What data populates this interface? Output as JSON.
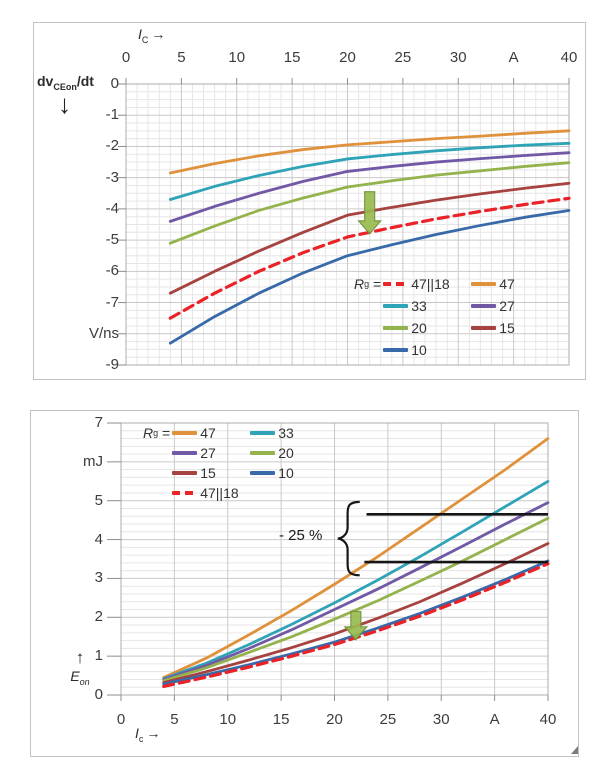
{
  "chart_data": [
    {
      "type": "line",
      "title": "",
      "xlabel": {
        "base": "I",
        "sub": "C",
        "arrow": "→"
      },
      "ylabel": {
        "base": "dv",
        "sub": "CEon",
        "suffix": "/dt",
        "arrow": "↓"
      },
      "xlim": [
        0,
        40
      ],
      "ylim": [
        -9,
        0
      ],
      "x_ticks": {
        "values": [
          0,
          5,
          10,
          15,
          20,
          25,
          30,
          35,
          40
        ],
        "labels": [
          "0",
          "5",
          "10",
          "15",
          "20",
          "25",
          "30",
          "A",
          "40"
        ]
      },
      "y_ticks": {
        "values": [
          0,
          -1,
          -2,
          -3,
          -4,
          -5,
          -6,
          -7,
          -8,
          -9
        ],
        "labels": [
          "0",
          "-1",
          "-2",
          "-3",
          "-4",
          "-5",
          "-6",
          "-7",
          "V/ns",
          "-9"
        ]
      },
      "grid": {
        "x_minor": 1,
        "x_major": 5,
        "y_minor": 0.25,
        "y_major": 1
      },
      "legend": {
        "prefix": {
          "base": "R",
          "sub": "g",
          "eq": "="
        },
        "position": "lower-right",
        "entries": [
          {
            "label": "47||18",
            "color": "#EB2227",
            "dash": true
          },
          {
            "label": "47",
            "color": "#E0913C",
            "dash": false
          },
          {
            "label": "33",
            "color": "#2FA3B7",
            "dash": false
          },
          {
            "label": "27",
            "color": "#7159A6",
            "dash": false
          },
          {
            "label": "20",
            "color": "#95B34D",
            "dash": false
          },
          {
            "label": "15",
            "color": "#A64240",
            "dash": false
          },
          {
            "label": "10",
            "color": "#3869A8",
            "dash": false
          }
        ]
      },
      "x": [
        4,
        8,
        12,
        16,
        20,
        24,
        28,
        32,
        36,
        40
      ],
      "series": [
        {
          "name": "47",
          "color": "#E0913C",
          "dash": false,
          "values": [
            -2.85,
            -2.55,
            -2.3,
            -2.1,
            -1.95,
            -1.85,
            -1.75,
            -1.67,
            -1.58,
            -1.5
          ]
        },
        {
          "name": "33",
          "color": "#2FA3B7",
          "dash": false,
          "values": [
            -3.7,
            -3.28,
            -2.93,
            -2.64,
            -2.4,
            -2.26,
            -2.14,
            -2.04,
            -1.96,
            -1.9
          ]
        },
        {
          "name": "27",
          "color": "#7159A6",
          "dash": false,
          "values": [
            -4.4,
            -3.92,
            -3.5,
            -3.12,
            -2.8,
            -2.64,
            -2.5,
            -2.39,
            -2.29,
            -2.2
          ]
        },
        {
          "name": "20",
          "color": "#95B34D",
          "dash": false,
          "values": [
            -5.1,
            -4.55,
            -4.05,
            -3.65,
            -3.3,
            -3.1,
            -2.92,
            -2.78,
            -2.64,
            -2.52
          ]
        },
        {
          "name": "15",
          "color": "#A64240",
          "dash": false,
          "values": [
            -6.7,
            -6.0,
            -5.35,
            -4.75,
            -4.2,
            -3.95,
            -3.72,
            -3.52,
            -3.34,
            -3.18
          ]
        },
        {
          "name": "10",
          "color": "#3869A8",
          "dash": false,
          "values": [
            -8.3,
            -7.45,
            -6.7,
            -6.05,
            -5.5,
            -5.15,
            -4.82,
            -4.53,
            -4.27,
            -4.05
          ]
        },
        {
          "name": "47||18",
          "color": "#EB2227",
          "dash": true,
          "values": [
            -7.5,
            -6.7,
            -6.0,
            -5.4,
            -4.9,
            -4.6,
            -4.32,
            -4.08,
            -3.86,
            -3.66
          ]
        }
      ],
      "annotations": {
        "block_arrow": {
          "x": 22,
          "from": -3.45,
          "to": -4.8,
          "fill": "#98BB4F",
          "stroke": "#6F8F3A"
        }
      }
    },
    {
      "type": "line",
      "title": "",
      "xlabel": {
        "base": "I",
        "sub": "c",
        "arrow": "→"
      },
      "ylabel": {
        "base": "E",
        "sub": "on",
        "arrow": "↑"
      },
      "xlim": [
        0,
        40
      ],
      "ylim": [
        0,
        7
      ],
      "x_ticks": {
        "values": [
          0,
          5,
          10,
          15,
          20,
          25,
          30,
          35,
          40
        ],
        "labels": [
          "0",
          "5",
          "10",
          "15",
          "20",
          "25",
          "30",
          "A",
          "40"
        ]
      },
      "y_ticks": {
        "values": [
          7,
          6,
          5,
          4,
          3,
          2,
          1,
          0
        ],
        "labels": [
          "7",
          "mJ",
          "5",
          "4",
          "3",
          "2",
          "1",
          "0"
        ]
      },
      "grid": {
        "x_minor": null,
        "x_major": 5,
        "y_minor": 0.2,
        "y_major": 1
      },
      "legend": {
        "prefix": {
          "base": "R",
          "sub": "g",
          "eq": "="
        },
        "position": "upper-left",
        "entries": [
          {
            "label": "47",
            "color": "#E0913C",
            "dash": false
          },
          {
            "label": "33",
            "color": "#2FA3B7",
            "dash": false
          },
          {
            "label": "27",
            "color": "#7159A6",
            "dash": false
          },
          {
            "label": "20",
            "color": "#95B34D",
            "dash": false
          },
          {
            "label": "15",
            "color": "#A64240",
            "dash": false
          },
          {
            "label": "10",
            "color": "#3869A8",
            "dash": false
          },
          {
            "label": "47||18",
            "color": "#EB2227",
            "dash": true
          }
        ]
      },
      "x": [
        4,
        8,
        12,
        16,
        20,
        24,
        28,
        32,
        36,
        40
      ],
      "series": [
        {
          "name": "47",
          "color": "#E0913C",
          "dash": false,
          "values": [
            0.45,
            0.95,
            1.55,
            2.18,
            2.85,
            3.55,
            4.3,
            5.05,
            5.8,
            6.6
          ]
        },
        {
          "name": "33",
          "color": "#2FA3B7",
          "dash": false,
          "values": [
            0.42,
            0.82,
            1.3,
            1.82,
            2.37,
            2.95,
            3.56,
            4.2,
            4.85,
            5.5
          ]
        },
        {
          "name": "27",
          "color": "#7159A6",
          "dash": false,
          "values": [
            0.4,
            0.76,
            1.2,
            1.68,
            2.2,
            2.72,
            3.27,
            3.83,
            4.4,
            4.95
          ]
        },
        {
          "name": "20",
          "color": "#95B34D",
          "dash": false,
          "values": [
            0.37,
            0.7,
            1.1,
            1.5,
            1.95,
            2.42,
            2.93,
            3.45,
            4.0,
            4.55
          ]
        },
        {
          "name": "15",
          "color": "#A64240",
          "dash": false,
          "values": [
            0.32,
            0.6,
            0.9,
            1.22,
            1.57,
            1.97,
            2.4,
            2.88,
            3.38,
            3.9
          ]
        },
        {
          "name": "10",
          "color": "#3869A8",
          "dash": false,
          "values": [
            0.28,
            0.52,
            0.78,
            1.06,
            1.36,
            1.72,
            2.1,
            2.52,
            2.97,
            3.45
          ]
        },
        {
          "name": "47||18",
          "color": "#EB2227",
          "dash": true,
          "values": [
            0.22,
            0.46,
            0.72,
            1.0,
            1.3,
            1.65,
            2.03,
            2.45,
            2.9,
            3.38
          ]
        }
      ],
      "annotations": {
        "block_arrow": {
          "x": 22,
          "from": 2.15,
          "to": 1.42,
          "fill": "#98BB4F",
          "stroke": "#6F8F3A"
        },
        "reduction": {
          "label": "- 25 %",
          "color": "#161616",
          "lines": [
            {
              "y": 4.65,
              "x1": 23.0,
              "x2": 40
            },
            {
              "y": 3.42,
              "x1": 22.8,
              "x2": 40
            }
          ],
          "brace": {
            "x": 20.3,
            "y_top": 4.97,
            "y_bottom": 3.08
          }
        }
      }
    }
  ]
}
